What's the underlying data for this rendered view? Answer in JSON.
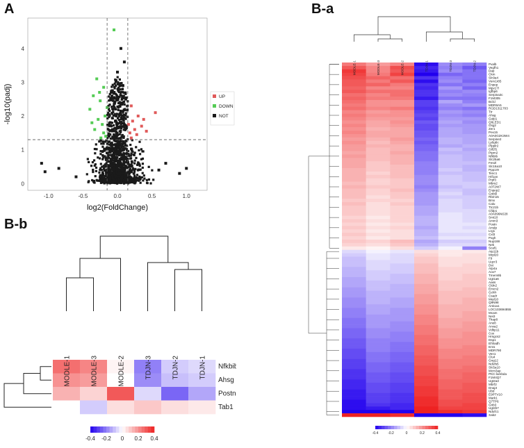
{
  "panels": {
    "a_label": "A",
    "ba_label": "B-a",
    "bb_label": "B-b"
  },
  "colors": {
    "up": "#e05a5a",
    "down": "#55cc55",
    "not": "#1a1a1a",
    "low": "#2200ee",
    "mid": "#ffffff",
    "high": "#ee2222"
  },
  "chart_data": [
    {
      "type": "scatter",
      "title": "",
      "xlabel": "log2(FoldChange)",
      "ylabel": "-log10(padj)",
      "xlim": [
        -1.3,
        1.3
      ],
      "ylim": [
        -0.2,
        4.9
      ],
      "xticks": [
        "-1.0",
        "-0.5",
        "0.0",
        "0.5",
        "1.0"
      ],
      "xtick_values": [
        -1.0,
        -0.5,
        0.0,
        0.5,
        1.0
      ],
      "yticks": [
        "0",
        "1",
        "2",
        "3",
        "4"
      ],
      "ytick_values": [
        0,
        1,
        2,
        3,
        4
      ],
      "thresholds": {
        "x": [
          -0.15,
          0.15
        ],
        "y": 1.3
      },
      "legend": [
        {
          "label": "UP",
          "color": "#e05a5a"
        },
        {
          "label": "DOWN",
          "color": "#55cc55"
        },
        {
          "label": "NOT",
          "color": "#1a1a1a"
        }
      ],
      "series": [
        {
          "name": "UP",
          "points": [
            [
              0.55,
              2.1
            ],
            [
              0.38,
              1.9
            ],
            [
              0.3,
              2.0
            ],
            [
              0.2,
              2.3
            ],
            [
              0.25,
              1.6
            ],
            [
              0.18,
              1.5
            ],
            [
              0.22,
              1.85
            ],
            [
              0.35,
              1.7
            ],
            [
              0.28,
              1.45
            ],
            [
              0.16,
              1.75
            ],
            [
              0.42,
              1.55
            ],
            [
              0.2,
              1.35
            ]
          ]
        },
        {
          "name": "DOWN",
          "points": [
            [
              -0.05,
              4.55
            ],
            [
              -0.2,
              2.85
            ],
            [
              -0.3,
              3.1
            ],
            [
              -0.35,
              2.6
            ],
            [
              -0.25,
              2.45
            ],
            [
              -0.4,
              2.2
            ],
            [
              -0.18,
              2.0
            ],
            [
              -0.28,
              1.9
            ],
            [
              -0.22,
              1.75
            ],
            [
              -0.33,
              1.6
            ],
            [
              -0.2,
              1.5
            ],
            [
              -0.17,
              1.4
            ],
            [
              -0.26,
              2.7
            ],
            [
              -0.15,
              2.25
            ],
            [
              -0.37,
              1.8
            ],
            [
              -0.24,
              1.35
            ]
          ]
        },
        {
          "name": "NOT",
          "points": [
            [
              -1.05,
              0.35
            ],
            [
              -0.85,
              0.45
            ],
            [
              -1.1,
              0.6
            ],
            [
              -0.6,
              0.2
            ],
            [
              1.0,
              0.45
            ],
            [
              0.9,
              0.3
            ],
            [
              0.7,
              0.6
            ],
            [
              0.6,
              0.4
            ],
            [
              0.05,
              4.0
            ],
            [
              0.1,
              3.6
            ],
            [
              0.0,
              3.3
            ],
            [
              -0.02,
              3.05
            ],
            [
              0.08,
              2.9
            ],
            [
              0.12,
              2.5
            ],
            [
              -0.08,
              2.7
            ],
            [
              0.05,
              2.35
            ]
          ]
        }
      ]
    },
    {
      "type": "heatmap",
      "name": "B-a",
      "columns": [
        "MODLE-1",
        "MODLE-3",
        "MODLE-2",
        "TDJN-1",
        "TDJN-3",
        "TDJN-2"
      ],
      "rows": [
        "Pvalb",
        "Vegfh1",
        "Dap",
        "Ckm",
        "Slc9a4",
        "Vom1r85",
        "Enpep",
        "Mpv17l",
        "Igfbp6",
        "Serpina3c",
        "F1M305",
        "Bcl1l",
        "MDR8A5",
        "RGD1311703",
        "Ttr",
        "Ahsg",
        "Gulp1",
        "Q6LED1",
        "Gsg2",
        "Zer1",
        "Pex15",
        "A0A0G2K3W4",
        "Serpine2",
        "Ly6g6c",
        "Plpplr2",
        "Gtf2f1",
        "Ptpm2",
        "Nfkbib",
        "Slc25a6",
        "Fes2l",
        "Slc16a10",
        "Ppp1r9",
        "Tenc1",
        "Hif1an",
        "Prpf3",
        "Mbrs2",
        "A0T2W7",
        "Enpep2",
        "Gnb5l",
        "Rbm15",
        "Bmx",
        "Calu",
        "Ttc21b",
        "Cfdp1",
        "A0A096MJ28",
        "Smt10",
        "Amm3",
        "Postn",
        "Amdp",
        "Lrg1",
        "Cxl3",
        "Pxgh",
        "Nup188",
        "Nek",
        "Scaf1",
        "Atp11b",
        "Mrpl20",
        "F9",
        "Uqcr3",
        "Dst",
        "Atp4a",
        "Aox7",
        "Tmem9b",
        "Ugt1a6",
        "Aass",
        "Cldn2",
        "Emcn2",
        "Gchfr",
        "Csadr",
        "Mrpl10",
        "Q9N98",
        "Ank1a1",
        "LOC103694855",
        "Mcam",
        "Nei3",
        "Thap8",
        "Ane8",
        "Anxa2",
        "Vdbp11",
        "Cox",
        "Hmgcs2",
        "Dsp1",
        "Ehhadh",
        "Ent1",
        "MDR790",
        "Ven1",
        "Clu4",
        "Gng12",
        "Ndufs5",
        "Slc5a10",
        "Mcm3ap",
        "PKC-lambda",
        "F1M4Q7",
        "Ugt2a3",
        "Mbrf2",
        "Dnaj3",
        "Ubd",
        "E9PTV10",
        "Mark1",
        "Q7TP6",
        "Gnb3",
        "Ugt2b7",
        "Ndufc1",
        "Xab2"
      ],
      "values": [
        [
          0.24,
          0.18,
          0.22,
          -0.38,
          -0.18,
          -0.2
        ],
        [
          0.3,
          0.22,
          0.32,
          -0.34,
          -0.2,
          -0.26
        ],
        [
          0.36,
          0.22,
          0.3,
          -0.36,
          -0.18,
          -0.22
        ],
        [
          0.34,
          0.24,
          0.34,
          -0.4,
          -0.24,
          -0.22
        ],
        [
          0.32,
          0.28,
          0.26,
          -0.32,
          -0.2,
          -0.22
        ],
        [
          0.3,
          0.24,
          0.3,
          -0.38,
          -0.18,
          -0.24
        ],
        [
          0.3,
          0.28,
          0.24,
          -0.32,
          -0.22,
          -0.2
        ],
        [
          0.28,
          0.22,
          0.22,
          -0.34,
          -0.16,
          -0.24
        ],
        [
          0.3,
          0.26,
          0.26,
          -0.32,
          -0.2,
          -0.18
        ],
        [
          0.26,
          0.22,
          0.26,
          -0.32,
          -0.18,
          -0.2
        ],
        [
          0.28,
          0.24,
          0.24,
          -0.36,
          -0.22,
          -0.22
        ],
        [
          0.26,
          0.2,
          0.2,
          -0.3,
          -0.14,
          -0.2
        ],
        [
          0.24,
          0.2,
          0.2,
          -0.3,
          -0.18,
          -0.16
        ],
        [
          0.26,
          0.22,
          0.24,
          -0.32,
          -0.2,
          -0.22
        ],
        [
          0.22,
          0.18,
          0.2,
          -0.3,
          -0.16,
          -0.18
        ],
        [
          0.24,
          0.2,
          0.2,
          -0.28,
          -0.18,
          -0.2
        ],
        [
          0.22,
          0.18,
          0.18,
          -0.3,
          -0.16,
          -0.16
        ],
        [
          0.2,
          0.16,
          0.2,
          -0.26,
          -0.14,
          -0.18
        ],
        [
          0.22,
          0.16,
          0.18,
          -0.28,
          -0.16,
          -0.16
        ],
        [
          0.2,
          0.14,
          0.16,
          -0.28,
          -0.14,
          -0.16
        ],
        [
          0.22,
          0.16,
          0.16,
          -0.26,
          -0.14,
          -0.16
        ],
        [
          0.2,
          0.16,
          0.16,
          -0.26,
          -0.14,
          -0.14
        ],
        [
          0.18,
          0.14,
          0.18,
          -0.24,
          -0.12,
          -0.14
        ],
        [
          0.2,
          0.12,
          0.16,
          -0.26,
          -0.12,
          -0.14
        ],
        [
          0.18,
          0.14,
          0.14,
          -0.24,
          -0.14,
          -0.12
        ],
        [
          0.18,
          0.12,
          0.14,
          -0.24,
          -0.1,
          -0.14
        ],
        [
          0.16,
          0.12,
          0.16,
          -0.22,
          -0.12,
          -0.12
        ],
        [
          0.18,
          0.12,
          0.14,
          -0.22,
          -0.1,
          -0.12
        ],
        [
          0.16,
          0.12,
          0.14,
          -0.22,
          -0.1,
          -0.12
        ],
        [
          0.16,
          0.1,
          0.14,
          -0.2,
          -0.1,
          -0.1
        ],
        [
          0.16,
          0.1,
          0.12,
          -0.2,
          -0.1,
          -0.12
        ],
        [
          0.14,
          0.1,
          0.12,
          -0.2,
          -0.08,
          -0.12
        ],
        [
          0.14,
          0.08,
          0.12,
          -0.2,
          -0.1,
          -0.1
        ],
        [
          0.14,
          0.1,
          0.12,
          -0.18,
          -0.08,
          -0.1
        ],
        [
          0.14,
          0.08,
          0.1,
          -0.18,
          -0.08,
          -0.1
        ],
        [
          0.12,
          0.08,
          0.1,
          -0.18,
          -0.08,
          -0.08
        ],
        [
          0.14,
          0.1,
          0.1,
          -0.2,
          -0.1,
          -0.08
        ],
        [
          0.12,
          0.08,
          0.12,
          -0.18,
          -0.08,
          -0.1
        ],
        [
          0.12,
          0.08,
          0.1,
          -0.16,
          -0.06,
          -0.1
        ],
        [
          0.12,
          0.06,
          0.1,
          -0.16,
          -0.08,
          -0.08
        ],
        [
          0.1,
          0.08,
          0.08,
          -0.16,
          -0.06,
          -0.08
        ],
        [
          0.12,
          0.06,
          0.1,
          -0.16,
          -0.06,
          -0.08
        ],
        [
          0.1,
          0.06,
          0.08,
          -0.14,
          -0.06,
          -0.08
        ],
        [
          0.1,
          0.06,
          0.08,
          -0.14,
          -0.06,
          -0.06
        ],
        [
          0.1,
          0.06,
          0.08,
          -0.14,
          -0.04,
          -0.06
        ],
        [
          0.08,
          0.04,
          0.08,
          -0.12,
          -0.04,
          -0.06
        ],
        [
          0.1,
          0.06,
          0.08,
          -0.12,
          -0.04,
          -0.06
        ],
        [
          0.08,
          0.04,
          0.06,
          -0.12,
          -0.04,
          -0.04
        ],
        [
          0.1,
          0.06,
          0.08,
          -0.14,
          -0.04,
          -0.06
        ],
        [
          0.08,
          0.04,
          0.06,
          -0.12,
          -0.04,
          -0.04
        ],
        [
          0.1,
          0.06,
          0.06,
          -0.12,
          -0.06,
          -0.06
        ],
        [
          0.08,
          0.04,
          0.06,
          -0.1,
          -0.04,
          -0.04
        ],
        [
          0.1,
          0.08,
          0.12,
          -0.14,
          -0.08,
          -0.08
        ],
        [
          0.08,
          0.06,
          0.1,
          -0.12,
          -0.06,
          -0.06
        ],
        [
          0.04,
          0.02,
          0.06,
          -0.08,
          -0.02,
          -0.2
        ],
        [
          -0.06,
          -0.02,
          -0.04,
          0.06,
          0.04,
          0.04
        ],
        [
          -0.08,
          -0.04,
          -0.06,
          0.08,
          0.04,
          0.06
        ],
        [
          -0.1,
          -0.04,
          -0.06,
          0.1,
          0.06,
          0.06
        ],
        [
          -0.1,
          -0.06,
          -0.06,
          0.1,
          0.06,
          0.06
        ],
        [
          -0.1,
          -0.06,
          -0.08,
          0.12,
          0.06,
          0.08
        ],
        [
          -0.12,
          -0.06,
          -0.08,
          0.12,
          0.08,
          0.08
        ],
        [
          -0.12,
          -0.08,
          -0.08,
          0.12,
          0.08,
          0.08
        ],
        [
          -0.12,
          -0.08,
          -0.1,
          0.14,
          0.08,
          0.1
        ],
        [
          -0.14,
          -0.08,
          -0.1,
          0.14,
          0.08,
          0.1
        ],
        [
          -0.14,
          -0.1,
          -0.1,
          0.14,
          0.1,
          0.1
        ],
        [
          -0.14,
          -0.1,
          -0.12,
          0.16,
          0.1,
          0.1
        ],
        [
          -0.16,
          -0.1,
          -0.12,
          0.16,
          0.1,
          0.12
        ],
        [
          -0.16,
          -0.12,
          -0.12,
          0.16,
          0.12,
          0.12
        ],
        [
          -0.16,
          -0.12,
          -0.12,
          0.18,
          0.12,
          0.12
        ],
        [
          -0.18,
          -0.12,
          -0.14,
          0.18,
          0.12,
          0.14
        ],
        [
          -0.18,
          -0.12,
          -0.14,
          0.18,
          0.12,
          0.14
        ],
        [
          -0.18,
          -0.14,
          -0.14,
          0.2,
          0.14,
          0.14
        ],
        [
          -0.2,
          -0.14,
          -0.16,
          0.2,
          0.14,
          0.14
        ],
        [
          -0.2,
          -0.14,
          -0.16,
          0.2,
          0.14,
          0.16
        ],
        [
          -0.2,
          -0.16,
          -0.16,
          0.22,
          0.14,
          0.16
        ],
        [
          -0.22,
          -0.16,
          -0.16,
          0.22,
          0.16,
          0.16
        ],
        [
          -0.22,
          -0.16,
          -0.18,
          0.22,
          0.16,
          0.18
        ],
        [
          -0.22,
          -0.16,
          -0.18,
          0.24,
          0.16,
          0.18
        ],
        [
          -0.24,
          -0.18,
          -0.18,
          0.24,
          0.18,
          0.18
        ],
        [
          -0.24,
          -0.18,
          -0.2,
          0.24,
          0.18,
          0.2
        ],
        [
          -0.24,
          -0.18,
          -0.2,
          0.26,
          0.18,
          0.2
        ],
        [
          -0.26,
          -0.2,
          -0.2,
          0.26,
          0.2,
          0.2
        ],
        [
          -0.26,
          -0.2,
          -0.22,
          0.26,
          0.2,
          0.2
        ],
        [
          -0.26,
          -0.2,
          -0.22,
          0.28,
          0.2,
          0.22
        ],
        [
          -0.28,
          -0.2,
          -0.22,
          0.28,
          0.22,
          0.22
        ],
        [
          -0.28,
          -0.22,
          -0.24,
          0.28,
          0.22,
          0.22
        ],
        [
          -0.28,
          -0.22,
          -0.24,
          0.3,
          0.22,
          0.24
        ],
        [
          -0.3,
          -0.22,
          -0.24,
          0.3,
          0.24,
          0.24
        ],
        [
          -0.3,
          -0.24,
          -0.26,
          0.3,
          0.24,
          0.24
        ],
        [
          -0.3,
          -0.24,
          -0.26,
          0.32,
          0.24,
          0.26
        ],
        [
          -0.32,
          -0.24,
          -0.26,
          0.32,
          0.26,
          0.26
        ],
        [
          -0.32,
          -0.26,
          -0.28,
          0.32,
          0.26,
          0.28
        ],
        [
          -0.32,
          -0.26,
          -0.28,
          0.34,
          0.26,
          0.28
        ],
        [
          -0.34,
          -0.26,
          -0.28,
          0.34,
          0.28,
          0.28
        ],
        [
          -0.34,
          -0.28,
          -0.3,
          0.34,
          0.28,
          0.3
        ],
        [
          -0.34,
          -0.28,
          -0.3,
          0.36,
          0.28,
          0.3
        ],
        [
          -0.36,
          -0.28,
          -0.3,
          0.36,
          0.3,
          0.3
        ],
        [
          -0.36,
          -0.3,
          -0.32,
          0.36,
          0.3,
          0.32
        ],
        [
          -0.36,
          -0.3,
          -0.32,
          0.38,
          0.3,
          0.32
        ],
        [
          -0.38,
          -0.3,
          -0.32,
          0.38,
          0.32,
          0.32
        ],
        [
          -0.38,
          -0.32,
          -0.34,
          0.38,
          0.32,
          0.34
        ],
        [
          -0.38,
          -0.36,
          -0.34,
          0.4,
          0.34,
          0.34
        ],
        [
          -0.4,
          -0.4,
          -0.4,
          0.4,
          0.38,
          0.36
        ],
        [
          0.4,
          0.4,
          0.38,
          -0.4,
          -0.4,
          -0.38
        ]
      ],
      "scale": {
        "min": -0.4,
        "max": 0.4,
        "ticks": [
          "-0.4",
          "-0.2",
          "0",
          "0.2",
          "0.4"
        ]
      }
    },
    {
      "type": "heatmap",
      "name": "B-b",
      "columns": [
        "MODLE-1",
        "MODLE-3",
        "MODLE-2",
        "TDJN-3",
        "TDJN-2",
        "TDJN-1"
      ],
      "rows": [
        "Nfkbib",
        "Ahsg",
        "Postn",
        "Tab1"
      ],
      "values": [
        [
          0.26,
          0.22,
          0.02,
          -0.2,
          -0.08,
          -0.06
        ],
        [
          0.2,
          0.18,
          0.0,
          -0.18,
          -0.1,
          -0.08
        ],
        [
          0.14,
          0.08,
          0.3,
          -0.06,
          -0.24,
          -0.14
        ],
        [
          0.0,
          -0.08,
          0.06,
          0.1,
          0.06,
          0.04
        ]
      ],
      "scale": {
        "min": -0.4,
        "max": 0.4,
        "ticks": [
          "-0.4",
          "-0.2",
          "0",
          "0.2",
          "0.4"
        ]
      }
    }
  ]
}
